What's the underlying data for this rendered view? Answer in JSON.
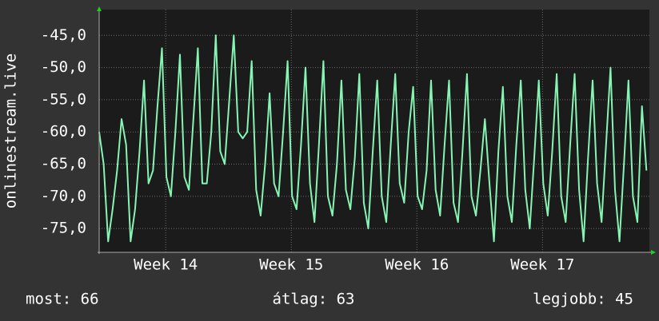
{
  "chart_data": {
    "type": "line",
    "y_label": "onlinestream.live",
    "x": [
      0,
      6,
      12,
      18,
      24,
      30,
      36,
      42,
      48,
      54,
      60,
      66,
      72,
      78,
      84,
      90,
      96,
      102,
      108,
      114,
      120,
      126,
      132,
      138,
      144,
      150,
      156,
      162,
      168,
      174,
      180,
      186,
      192,
      198,
      204,
      210,
      216,
      222,
      228,
      234,
      240,
      246,
      252,
      258,
      264,
      270,
      276,
      282,
      288,
      294,
      300,
      306,
      312,
      318,
      324,
      330,
      336,
      342,
      348,
      354,
      360,
      366,
      372,
      378,
      384,
      390,
      396,
      402,
      408,
      414,
      420,
      426,
      432,
      438,
      444,
      450,
      456,
      462,
      468,
      474,
      480,
      486,
      492,
      498,
      504,
      510,
      516,
      522,
      528,
      534,
      540,
      546,
      552,
      558,
      564,
      570,
      576,
      582,
      588,
      594,
      600,
      606,
      612,
      618,
      624,
      630,
      636,
      642,
      648,
      654,
      660,
      666,
      672,
      678,
      684,
      690,
      696,
      702,
      708,
      714,
      720,
      726,
      732
    ],
    "series": [
      {
        "name": "onlinestream.live",
        "color": "#86f5b4",
        "values": [
          -60,
          -65,
          -77,
          -72,
          -66,
          -58,
          -62,
          -77,
          -72,
          -63,
          -52,
          -68,
          -66,
          -56,
          -47,
          -67,
          -70,
          -60,
          -48,
          -67,
          -69,
          -58,
          -47,
          -68,
          -68,
          -60,
          -45,
          -63,
          -65,
          -55,
          -45,
          -60,
          -61,
          -60,
          -49,
          -69,
          -73,
          -65,
          -54,
          -68,
          -70,
          -60,
          -49,
          -70,
          -72,
          -62,
          -50,
          -68,
          -74,
          -62,
          -49,
          -70,
          -73,
          -65,
          -52,
          -69,
          -72,
          -64,
          -51,
          -71,
          -75,
          -63,
          -52,
          -70,
          -74,
          -62,
          -51,
          -68,
          -71,
          -60,
          -53,
          -70,
          -72,
          -66,
          -52,
          -69,
          -73,
          -62,
          -52,
          -71,
          -74,
          -63,
          -51,
          -70,
          -73,
          -66,
          -58,
          -68,
          -77,
          -63,
          -53,
          -70,
          -74,
          -62,
          -52,
          -69,
          -75,
          -64,
          -52,
          -68,
          -73,
          -63,
          -51,
          -70,
          -74,
          -62,
          -51,
          -69,
          -77,
          -64,
          -52,
          -68,
          -74,
          -62,
          -50,
          -69,
          -77,
          -65,
          -52,
          -70,
          -74,
          -56,
          -66
        ]
      }
    ],
    "xlim": [
      0,
      736
    ],
    "xticks": [
      {
        "value": 89,
        "label": "Week 14"
      },
      {
        "value": 257,
        "label": "Week 15"
      },
      {
        "value": 425,
        "label": "Week 16"
      },
      {
        "value": 593,
        "label": "Week 17"
      }
    ],
    "ylim": [
      -78.7,
      -41.0
    ],
    "yticks": [
      {
        "value": -75,
        "label": "-75,0"
      },
      {
        "value": -70,
        "label": "-70,0"
      },
      {
        "value": -65,
        "label": "-65,0"
      },
      {
        "value": -60,
        "label": "-60,0"
      },
      {
        "value": -55,
        "label": "-55,0"
      },
      {
        "value": -50,
        "label": "-50,0"
      },
      {
        "value": -45,
        "label": "-45,0"
      }
    ],
    "grid": true,
    "footer": [
      "most: 66",
      "átlag: 63",
      "legjobb: 45"
    ]
  }
}
